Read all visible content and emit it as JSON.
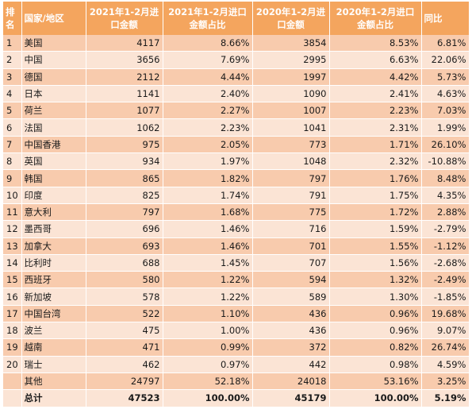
{
  "headers": {
    "rank": "排名",
    "country": "国家/地区",
    "v2021": "2021年1-2月进口金额",
    "p2021": "2021年1-2月进口金额占比",
    "v2020": "2020年1-2月进口金额",
    "p2020": "2020年1-2月进口金额占比",
    "yoy": "同比"
  },
  "rows": [
    {
      "rank": "1",
      "country": "美国",
      "v2021": "4117",
      "p2021": "8.66%",
      "v2020": "3854",
      "p2020": "8.53%",
      "yoy": "6.81%"
    },
    {
      "rank": "2",
      "country": "中国",
      "v2021": "3656",
      "p2021": "7.69%",
      "v2020": "2995",
      "p2020": "6.63%",
      "yoy": "22.06%"
    },
    {
      "rank": "3",
      "country": "德国",
      "v2021": "2112",
      "p2021": "4.44%",
      "v2020": "1997",
      "p2020": "4.42%",
      "yoy": "5.73%"
    },
    {
      "rank": "4",
      "country": "日本",
      "v2021": "1141",
      "p2021": "2.40%",
      "v2020": "1090",
      "p2020": "2.41%",
      "yoy": "4.63%"
    },
    {
      "rank": "5",
      "country": "荷兰",
      "v2021": "1077",
      "p2021": "2.27%",
      "v2020": "1007",
      "p2020": "2.23%",
      "yoy": "7.03%"
    },
    {
      "rank": "6",
      "country": "法国",
      "v2021": "1062",
      "p2021": "2.23%",
      "v2020": "1041",
      "p2020": "2.31%",
      "yoy": "1.99%"
    },
    {
      "rank": "7",
      "country": "中国香港",
      "v2021": "975",
      "p2021": "2.05%",
      "v2020": "773",
      "p2020": "1.71%",
      "yoy": "26.10%"
    },
    {
      "rank": "8",
      "country": "英国",
      "v2021": "934",
      "p2021": "1.97%",
      "v2020": "1048",
      "p2020": "2.32%",
      "yoy": "-10.88%"
    },
    {
      "rank": "9",
      "country": "韩国",
      "v2021": "865",
      "p2021": "1.82%",
      "v2020": "797",
      "p2020": "1.76%",
      "yoy": "8.48%"
    },
    {
      "rank": "10",
      "country": "印度",
      "v2021": "825",
      "p2021": "1.74%",
      "v2020": "791",
      "p2020": "1.75%",
      "yoy": "4.35%"
    },
    {
      "rank": "11",
      "country": "意大利",
      "v2021": "797",
      "p2021": "1.68%",
      "v2020": "775",
      "p2020": "1.72%",
      "yoy": "2.88%"
    },
    {
      "rank": "12",
      "country": "墨西哥",
      "v2021": "696",
      "p2021": "1.46%",
      "v2020": "716",
      "p2020": "1.59%",
      "yoy": "-2.79%"
    },
    {
      "rank": "13",
      "country": "加拿大",
      "v2021": "693",
      "p2021": "1.46%",
      "v2020": "701",
      "p2020": "1.55%",
      "yoy": "-1.12%"
    },
    {
      "rank": "14",
      "country": "比利时",
      "v2021": "688",
      "p2021": "1.45%",
      "v2020": "707",
      "p2020": "1.56%",
      "yoy": "-2.68%"
    },
    {
      "rank": "15",
      "country": "西班牙",
      "v2021": "580",
      "p2021": "1.22%",
      "v2020": "594",
      "p2020": "1.32%",
      "yoy": "-2.49%"
    },
    {
      "rank": "16",
      "country": "新加坡",
      "v2021": "578",
      "p2021": "1.22%",
      "v2020": "589",
      "p2020": "1.30%",
      "yoy": "-1.85%"
    },
    {
      "rank": "17",
      "country": "中国台湾",
      "v2021": "522",
      "p2021": "1.10%",
      "v2020": "436",
      "p2020": "0.96%",
      "yoy": "19.68%"
    },
    {
      "rank": "18",
      "country": "波兰",
      "v2021": "475",
      "p2021": "1.00%",
      "v2020": "436",
      "p2020": "0.96%",
      "yoy": "9.07%"
    },
    {
      "rank": "19",
      "country": "越南",
      "v2021": "471",
      "p2021": "0.99%",
      "v2020": "372",
      "p2020": "0.82%",
      "yoy": "26.74%"
    },
    {
      "rank": "20",
      "country": "瑞士",
      "v2021": "462",
      "p2021": "0.97%",
      "v2020": "442",
      "p2020": "0.98%",
      "yoy": "4.59%"
    },
    {
      "rank": "",
      "country": "其他",
      "v2021": "24797",
      "p2021": "52.18%",
      "v2020": "24018",
      "p2020": "53.16%",
      "yoy": "3.25%"
    }
  ],
  "total": {
    "rank": "",
    "country": "总计",
    "v2021": "47523",
    "p2021": "100.00%",
    "v2020": "45179",
    "p2020": "100.00%",
    "yoy": "5.19%"
  },
  "colors": {
    "header": "#f4a55e",
    "row_dark": "#f8cbad",
    "row_light": "#fbe4d5"
  }
}
